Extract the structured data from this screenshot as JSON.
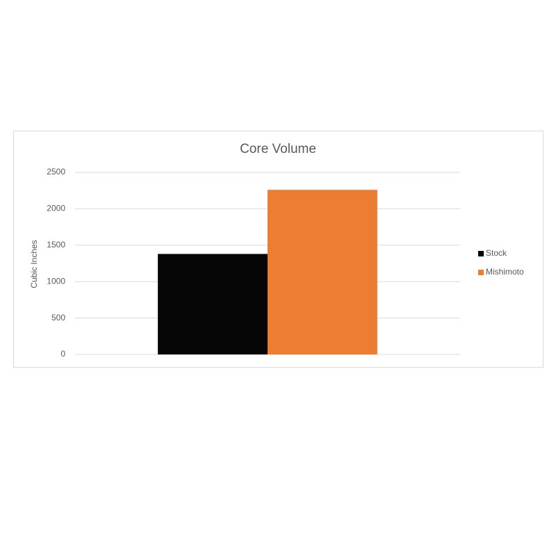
{
  "chart_data": {
    "type": "bar",
    "title": "Core Volume",
    "y_label": "Cubic Inches",
    "categories": [
      null
    ],
    "series": [
      {
        "name": "Stock",
        "color": "#060606",
        "values": [
          1380
        ]
      },
      {
        "name": "Mishimoto",
        "color": "#ed7d31",
        "values": [
          2260
        ]
      }
    ],
    "ylim": [
      0,
      2500
    ],
    "yticks": [
      0,
      500,
      1000,
      1500,
      2000,
      2500
    ],
    "grid": true,
    "legend": "right"
  }
}
